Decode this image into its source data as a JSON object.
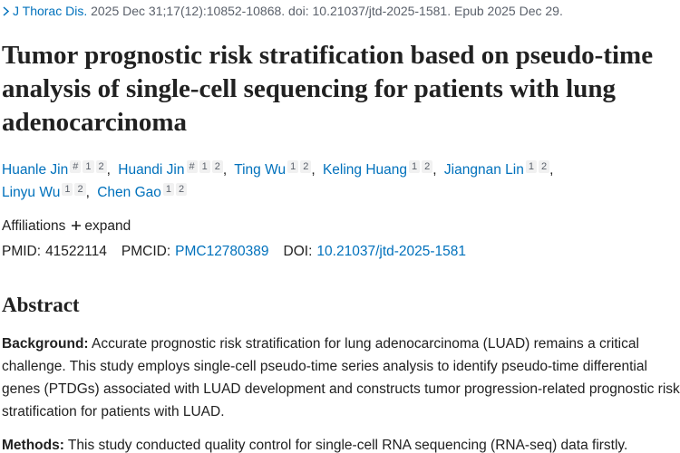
{
  "citation": {
    "journal": "J Thorac Dis.",
    "details": "2025 Dec 31;17(12):10852-10868. doi: 10.21037/jtd-2025-1581. Epub 2025 Dec 29."
  },
  "title": "Tumor prognostic risk stratification based on pseudo-time analysis of single-cell sequencing for patients with lung adenocarcinoma",
  "authors": {
    "separator": ",",
    "list": [
      {
        "name": "Huanle Jin",
        "marks": [
          "#",
          "1",
          "2"
        ]
      },
      {
        "name": "Huandi Jin",
        "marks": [
          "#",
          "1",
          "2"
        ]
      },
      {
        "name": "Ting Wu",
        "marks": [
          "1",
          "2"
        ]
      },
      {
        "name": "Keling Huang",
        "marks": [
          "1",
          "2"
        ]
      },
      {
        "name": "Jiangnan Lin",
        "marks": [
          "1",
          "2"
        ]
      },
      {
        "name": "Linyu Wu",
        "marks": [
          "1",
          "2"
        ]
      },
      {
        "name": "Chen Gao",
        "marks": [
          "1",
          "2"
        ]
      }
    ]
  },
  "affiliations": {
    "label": "Affiliations",
    "expand": "expand"
  },
  "identifiers": {
    "pmid_label": "PMID:",
    "pmid": "41522114",
    "pmcid_label": "PMCID:",
    "pmcid": "PMC12780389",
    "doi_label": "DOI:",
    "doi": "10.21037/jtd-2025-1581"
  },
  "abstract": {
    "heading": "Abstract",
    "sections": [
      {
        "label": "Background:",
        "text": "Accurate prognostic risk stratification for lung adenocarcinoma (LUAD) remains a critical challenge. This study employs single-cell pseudo-time series analysis to identify pseudo-time differential genes (PTDGs) associated with LUAD development and constructs tumor progression-related prognostic risk stratification for patients with LUAD."
      },
      {
        "label": "Methods:",
        "text": "This study conducted quality control for single-cell RNA sequencing (RNA-seq) data firstly."
      }
    ]
  }
}
